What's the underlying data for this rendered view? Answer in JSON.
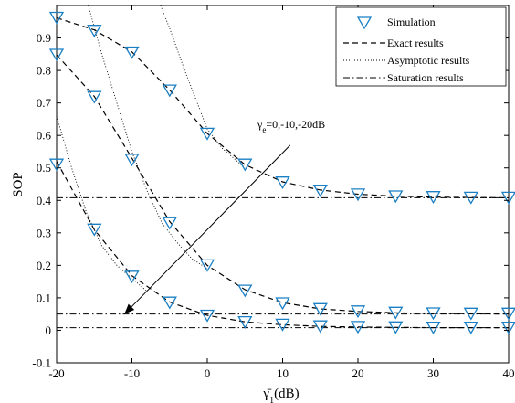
{
  "chart_data": {
    "type": "line",
    "xlabel": "γ̄",
    "xlabel_subscript": "1",
    "xlabel_unit": "(dB)",
    "ylabel": "SOP",
    "xlim": [
      -20,
      40
    ],
    "ylim": [
      -0.1,
      1.0
    ],
    "xticks": [
      -20,
      -10,
      0,
      10,
      20,
      30,
      40
    ],
    "yticks": [
      -0.1,
      0,
      0.1,
      0.2,
      0.3,
      0.4,
      0.5,
      0.6,
      0.7,
      0.8,
      0.9
    ],
    "grid": false,
    "legend_position": "top-right",
    "legend": [
      {
        "label": "Simulation",
        "style": "marker-triangle"
      },
      {
        "label": "Exact results",
        "style": "dashed"
      },
      {
        "label": "Asymptotic results",
        "style": "dotted"
      },
      {
        "label": "Saturation results",
        "style": "dashdot"
      }
    ],
    "annotation": {
      "text_prefix": "γ̄",
      "text_subscript": "e",
      "text_suffix": "=0,-10,-20dB",
      "arrow_from": [
        11,
        0.57
      ],
      "arrow_to": [
        -11,
        0.05
      ]
    },
    "series": [
      {
        "x": [
          -20,
          -15,
          -10,
          -5,
          0,
          5,
          10,
          15,
          20,
          25,
          30,
          35,
          40
        ],
        "simulation": [
          0.962,
          0.922,
          0.855,
          0.738,
          0.605,
          0.51,
          0.455,
          0.43,
          0.418,
          0.412,
          0.41,
          0.408,
          0.408
        ],
        "exact": [
          0.962,
          0.925,
          0.857,
          0.74,
          0.606,
          0.51,
          0.457,
          0.432,
          0.419,
          0.413,
          0.41,
          0.409,
          0.408
        ],
        "asymptotic_x": [
          -6.2,
          -5,
          -3,
          -1,
          0,
          2,
          5
        ],
        "asymptotic_y": [
          1.0,
          0.93,
          0.8,
          0.68,
          0.62,
          0.56,
          0.5
        ],
        "saturation": 0.408
      },
      {
        "x": [
          -20,
          -15,
          -10,
          -5,
          0,
          5,
          10,
          15,
          20,
          25,
          30,
          35,
          40
        ],
        "simulation": [
          0.848,
          0.718,
          0.525,
          0.33,
          0.2,
          0.122,
          0.083,
          0.065,
          0.058,
          0.054,
          0.052,
          0.051,
          0.051
        ],
        "exact": [
          0.848,
          0.72,
          0.53,
          0.335,
          0.2,
          0.125,
          0.085,
          0.066,
          0.058,
          0.054,
          0.052,
          0.051,
          0.05
        ],
        "asymptotic_x": [
          -15.8,
          -14,
          -12,
          -10,
          -8,
          -6,
          -4,
          -2,
          0
        ],
        "asymptotic_y": [
          1.0,
          0.85,
          0.7,
          0.55,
          0.43,
          0.33,
          0.27,
          0.22,
          0.19
        ],
        "saturation": 0.05
      },
      {
        "x": [
          -20,
          -15,
          -10,
          -5,
          0,
          5,
          10,
          15,
          20,
          25,
          30,
          35,
          40
        ],
        "simulation": [
          0.51,
          0.31,
          0.165,
          0.085,
          0.045,
          0.025,
          0.017,
          0.012,
          0.01,
          0.009,
          0.008,
          0.008,
          0.008
        ],
        "exact": [
          0.52,
          0.31,
          0.168,
          0.087,
          0.046,
          0.026,
          0.017,
          0.012,
          0.01,
          0.009,
          0.008,
          0.008,
          0.008
        ],
        "asymptotic_x": [
          -20,
          -18,
          -16,
          -14,
          -12,
          -10,
          -8
        ],
        "asymptotic_y": [
          0.66,
          0.5,
          0.36,
          0.26,
          0.2,
          0.16,
          0.12
        ],
        "saturation": 0.008
      }
    ],
    "colors": {
      "line": "#000000",
      "marker": "#1a7fc4"
    }
  }
}
